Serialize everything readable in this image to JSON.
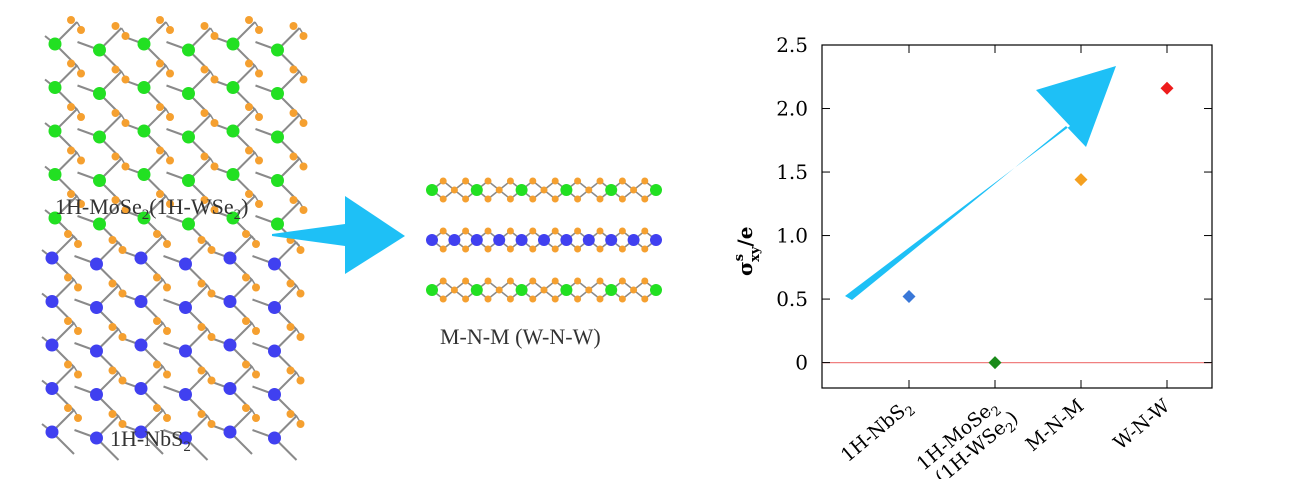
{
  "labels": {
    "mose2_main": "1H-MoSe",
    "mose2_sub": "2",
    "mose2_rest": "(1H-WSe",
    "mose2_sub2": "2",
    "mose2_close": ")",
    "nbs2_main": "1H-NbS",
    "nbs2_sub": "2",
    "stack": "M-N-M (W-N-W)"
  },
  "colors": {
    "mo_atom": "#22e022",
    "nb_atom": "#4040f0",
    "chalcogen": "#f5a030",
    "bond": "#8a8a8a",
    "arrow": "#1ec0f6",
    "zero_line": "#f08080"
  },
  "chart_data": {
    "type": "scatter",
    "ylabel_main": "σ",
    "ylabel_sup": "s",
    "ylabel_sub": "xy",
    "ylabel_tail": "/e",
    "ylim": [
      -0.2,
      2.5
    ],
    "yticks": [
      "0",
      "0.5",
      "1.0",
      "1.5",
      "2.0",
      "2.5"
    ],
    "ytick_values": [
      0,
      0.5,
      1.0,
      1.5,
      2.0,
      2.5
    ],
    "zero_line": 0,
    "categories": [
      {
        "line1": "1H-NbS",
        "sub1": "2",
        "line2": "",
        "sub2": ""
      },
      {
        "line1": "1H-MoSe",
        "sub1": "2",
        "line2": "(1H-WSe",
        "sub2": "2",
        "close": ")"
      },
      {
        "line1": "M-N-M",
        "sub1": "",
        "line2": "",
        "sub2": ""
      },
      {
        "line1": "W-N-W",
        "sub1": "",
        "line2": "",
        "sub2": ""
      }
    ],
    "points": [
      {
        "category": "1H-NbS2",
        "value": 0.52,
        "color": "#3a78d8"
      },
      {
        "category": "1H-MoSe2 (1H-WSe2)",
        "value": 0.0,
        "color": "#1a8a1a"
      },
      {
        "category": "M-N-M",
        "value": 1.44,
        "color": "#f5a020"
      },
      {
        "category": "W-N-W",
        "value": 2.16,
        "color": "#ee1c1c"
      }
    ]
  }
}
